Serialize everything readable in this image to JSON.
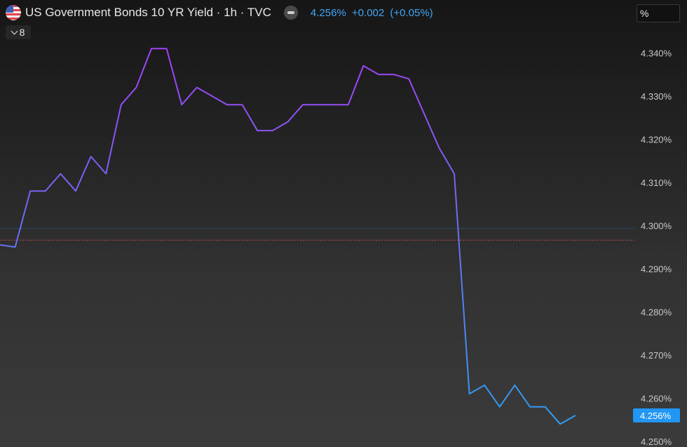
{
  "header": {
    "title": "US Government Bonds 10 YR Yield · 1h · TVC",
    "last_value": "4.256%",
    "change": "+0.002",
    "change_pct": "(+0.05%)",
    "collapse_count": "8",
    "unit_button": "%"
  },
  "colors": {
    "line_start": "#a43ff5",
    "line_end": "#2ca0f0",
    "price_tag": "#2196f3",
    "blue_ref_line": "#2a4a66",
    "red_ref_line": "#c05050",
    "flag_red": "#e0454a",
    "flag_blue": "#3f5fb5"
  },
  "chart_data": {
    "type": "line",
    "title": "US Government Bonds 10 YR Yield · 1h · TVC",
    "ylabel": "",
    "xlabel": "",
    "y_unit": "%",
    "ylim": [
      4.249,
      4.3425
    ],
    "y_ticks": [
      "4.340%",
      "4.330%",
      "4.320%",
      "4.310%",
      "4.300%",
      "4.290%",
      "4.280%",
      "4.270%",
      "4.260%",
      "4.250%"
    ],
    "y_tick_values": [
      4.34,
      4.33,
      4.32,
      4.31,
      4.3,
      4.29,
      4.28,
      4.27,
      4.26,
      4.25
    ],
    "grid": false,
    "reference_lines": [
      4.2993,
      4.2966
    ],
    "last_value": 4.256,
    "last_value_label": "4.256%",
    "series": [
      {
        "values": [
          4.2955,
          4.295,
          4.308,
          4.308,
          4.312,
          4.308,
          4.316,
          4.312,
          4.328,
          4.332,
          4.341,
          4.341,
          4.328,
          4.332,
          4.33,
          4.328,
          4.328,
          4.322,
          4.322,
          4.324,
          4.328,
          4.328,
          4.328,
          4.328,
          4.337,
          4.335,
          4.335,
          4.334,
          4.326,
          4.318,
          4.312,
          4.261,
          4.263,
          4.258,
          4.263,
          4.258,
          4.258,
          4.254,
          4.256
        ]
      }
    ]
  }
}
